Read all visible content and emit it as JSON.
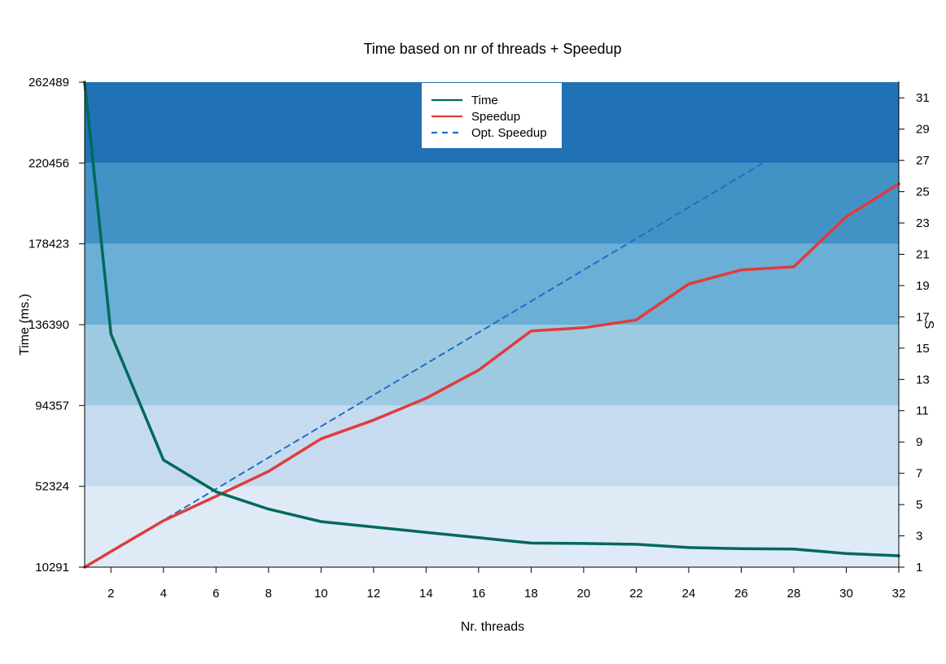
{
  "chart_data": {
    "type": "line",
    "title": "Time based on nr of threads + Speedup",
    "xlabel": "Nr. threads",
    "ylabel": "Time (ms.)",
    "y2label": "S",
    "x": [
      1,
      2,
      4,
      6,
      8,
      10,
      12,
      14,
      16,
      18,
      20,
      22,
      24,
      26,
      28,
      30,
      32
    ],
    "xlim": [
      1,
      32
    ],
    "x_ticks": [
      2,
      4,
      6,
      8,
      10,
      12,
      14,
      16,
      18,
      20,
      22,
      24,
      26,
      28,
      30,
      32
    ],
    "ylim": [
      10291,
      262489
    ],
    "y_ticks": [
      10291,
      52324,
      94357,
      136390,
      178423,
      220456,
      262489
    ],
    "y2lim": [
      1,
      32
    ],
    "y2_ticks": [
      1,
      3,
      5,
      7,
      9,
      11,
      13,
      15,
      17,
      19,
      21,
      23,
      25,
      27,
      29,
      31
    ],
    "background_bands": {
      "boundaries": [
        10291,
        52324,
        94357,
        136390,
        178423,
        220456,
        262489
      ],
      "colors": [
        "#deebf7",
        "#c6dbef",
        "#9ecae1",
        "#6baed6",
        "#4292c6",
        "#2171b5"
      ]
    },
    "series": [
      {
        "name": "Time",
        "axis": "left",
        "color": "#00695c",
        "style": "solid",
        "values": [
          262489,
          131500,
          66000,
          49500,
          40500,
          34000,
          31200,
          28400,
          25600,
          22800,
          22600,
          22200,
          20500,
          19900,
          19700,
          17400,
          16200
        ]
      },
      {
        "name": "Speedup",
        "axis": "right",
        "color": "#e03c3c",
        "style": "solid",
        "values": [
          1.0,
          2.0,
          3.97,
          5.53,
          7.12,
          9.2,
          10.4,
          11.8,
          13.6,
          16.1,
          16.3,
          16.8,
          19.1,
          20.0,
          20.2,
          23.4,
          25.5
        ]
      },
      {
        "name": "Opt. Speedup",
        "axis": "right",
        "color": "#1f6fc5",
        "style": "dashed",
        "values": [
          1,
          2,
          4,
          6,
          8,
          10,
          12,
          14,
          16,
          18,
          20,
          22,
          24,
          26,
          28,
          30,
          32
        ]
      }
    ],
    "legend": {
      "position": "top-center",
      "entries": [
        "Time",
        "Speedup",
        "Opt. Speedup"
      ]
    },
    "grid": false
  }
}
